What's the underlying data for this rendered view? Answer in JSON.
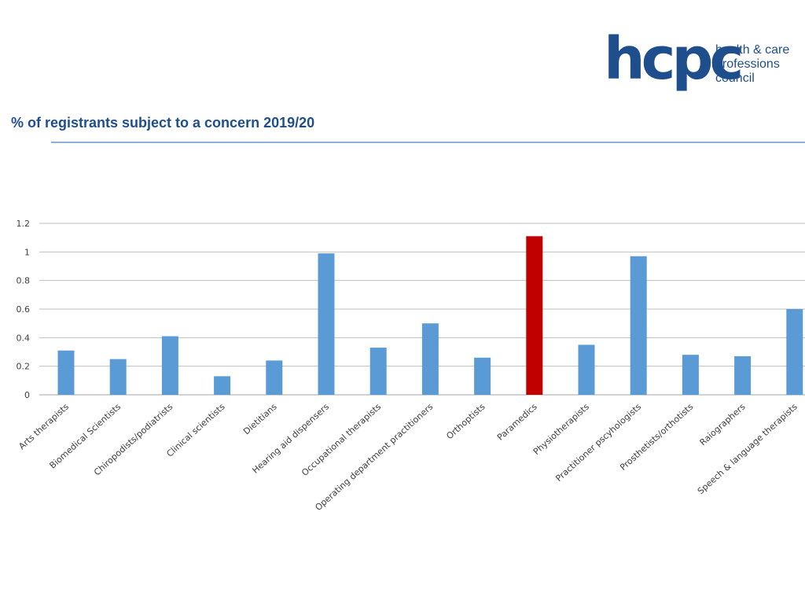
{
  "logo": {
    "mark": "hcpc",
    "tagline_lines": [
      "health & care",
      "professions",
      "council"
    ]
  },
  "slide": {
    "title": "% of registrants subject to a concern 2019/20"
  },
  "colors": {
    "brand": "#1f4e8c",
    "bar": "#5b9bd5",
    "highlight_bar": "#c00000",
    "gridline": "#bfbfbf",
    "rule": "#8fb0d6"
  },
  "chart_data": {
    "type": "bar",
    "title": "",
    "xlabel": "",
    "ylabel": "",
    "ylim": [
      0,
      1.2
    ],
    "yticks": [
      "0",
      "0.2",
      "0.4",
      "0.6",
      "0.8",
      "1",
      "1.2"
    ],
    "grid": true,
    "categories": [
      "Arts therapists",
      "Biomedical Scientists",
      "Chiropodists/podiatrists",
      "Clinical scientists",
      "Dietitians",
      "Hearing aid dispensers",
      "Occupational therapists",
      "Operating department practitioners",
      "Orthoptists",
      "Paramedics",
      "Physiotherapists",
      "Practitioner pscyhologists",
      "Prosthetists/orthotists",
      "Raiographers",
      "Speech & language therapists"
    ],
    "values": [
      0.31,
      0.25,
      0.41,
      0.13,
      0.24,
      0.99,
      0.33,
      0.5,
      0.26,
      1.11,
      0.35,
      0.97,
      0.28,
      0.27,
      0.6
    ],
    "highlight": "Paramedics"
  }
}
